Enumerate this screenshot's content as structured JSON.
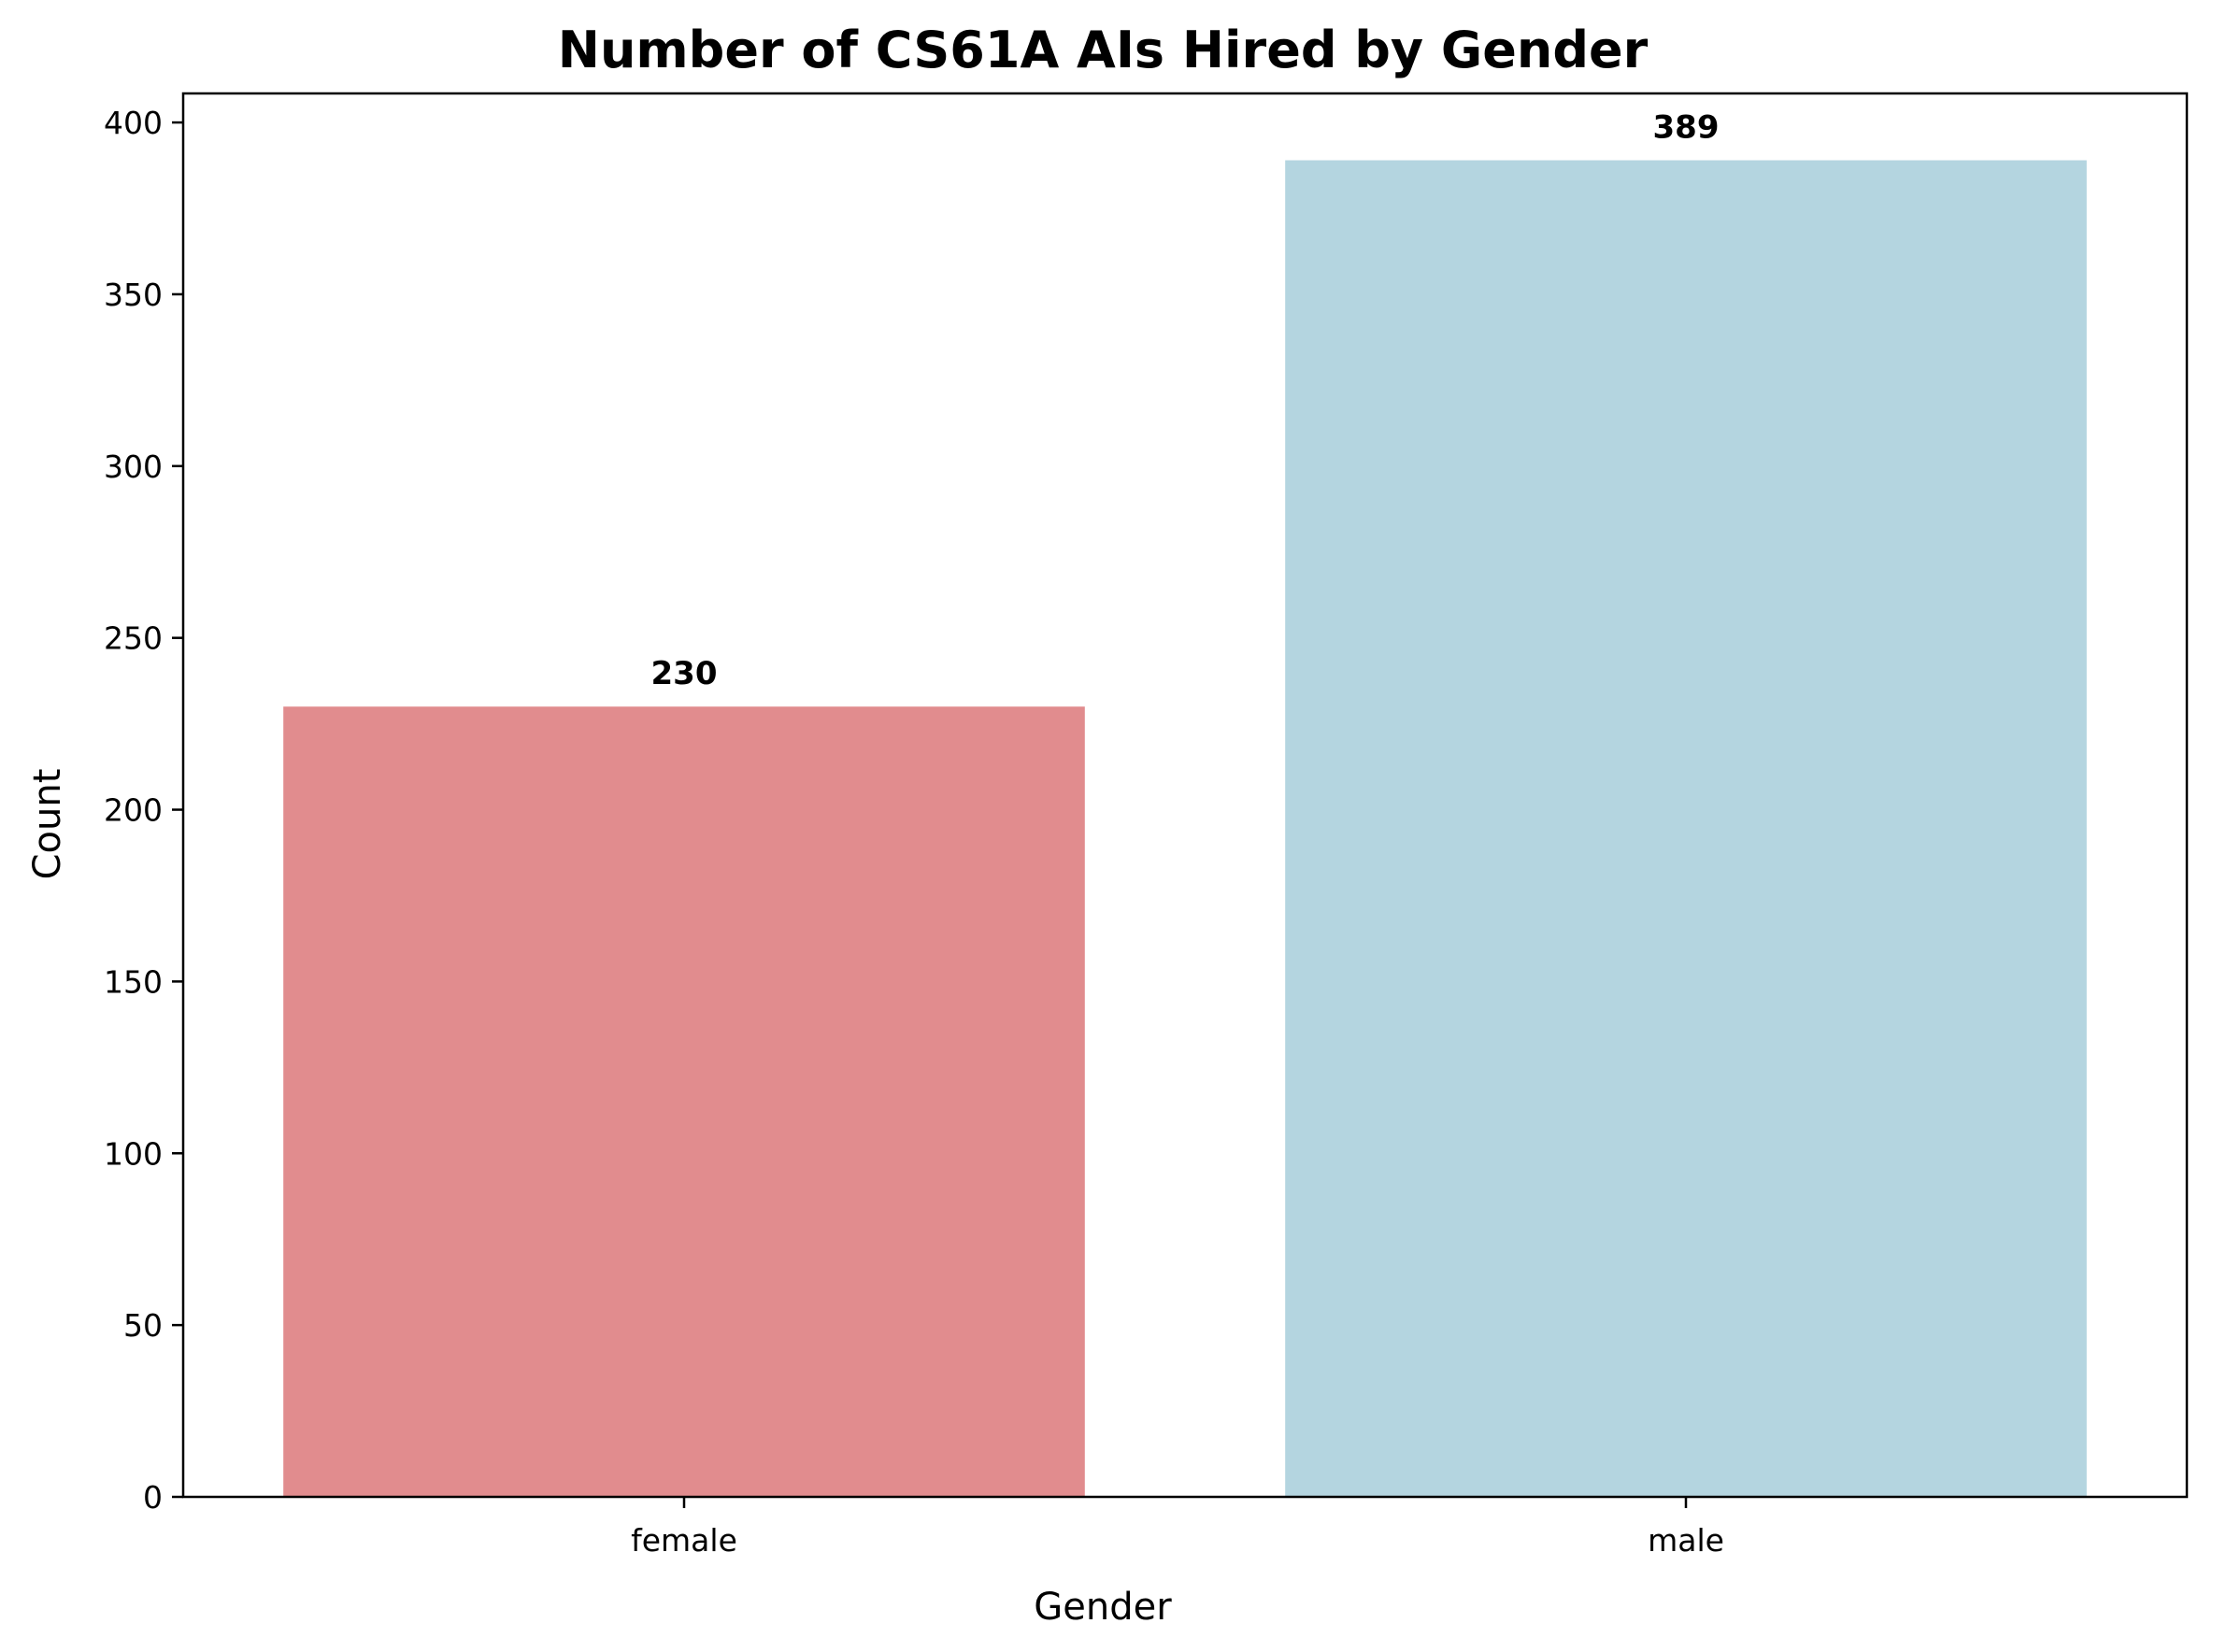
{
  "chart_data": {
    "type": "bar",
    "title": "Number of CS61A AIs Hired by Gender",
    "xlabel": "Gender",
    "ylabel": "Count",
    "categories": [
      "female",
      "male"
    ],
    "values": [
      230,
      389
    ],
    "data_labels": [
      "230",
      "389"
    ],
    "bar_colors": [
      "#e18c8e",
      "#b4d5e0"
    ],
    "ylim": [
      0,
      408.45
    ],
    "yticks": [
      0,
      50,
      100,
      150,
      200,
      250,
      300,
      350,
      400
    ],
    "ytick_labels": [
      "0",
      "50",
      "100",
      "150",
      "200",
      "250",
      "300",
      "350",
      "400"
    ],
    "grid": false,
    "legend": "none"
  }
}
